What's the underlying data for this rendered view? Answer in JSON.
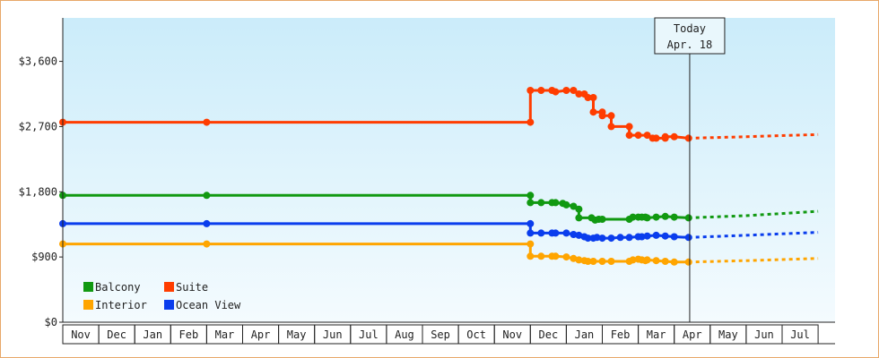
{
  "chart_data": {
    "type": "line",
    "y_ticks": [
      {
        "value": 0,
        "label": "$0"
      },
      {
        "value": 900,
        "label": "$900"
      },
      {
        "value": 1800,
        "label": "$1,800"
      },
      {
        "value": 2700,
        "label": "$2,700"
      },
      {
        "value": 3600,
        "label": "$3,600"
      }
    ],
    "ylim": [
      0,
      3600
    ],
    "y_axis_top": 4200,
    "x_months": [
      "Nov",
      "Dec",
      "Jan",
      "Feb",
      "Mar",
      "Apr",
      "May",
      "Jun",
      "Jul",
      "Aug",
      "Sep",
      "Oct",
      "Nov",
      "Dec",
      "Jan",
      "Feb",
      "Mar",
      "Apr",
      "May",
      "Jun",
      "Jul"
    ],
    "today": {
      "line1": "Today",
      "line2": "Apr. 18",
      "x": 17.43
    },
    "legend": [
      {
        "name": "Balcony",
        "color": "#119911"
      },
      {
        "name": "Suite",
        "color": "#ff3d00"
      },
      {
        "name": "Interior",
        "color": "#ffa500"
      },
      {
        "name": "Ocean View",
        "color": "#0a3ded"
      }
    ],
    "series": [
      {
        "name": "Suite",
        "color": "#ff3d00",
        "points": [
          [
            0,
            2760
          ],
          [
            4,
            2760
          ],
          [
            13,
            2760
          ],
          [
            13,
            3200
          ],
          [
            13.3,
            3200
          ],
          [
            13.6,
            3200
          ],
          [
            13.7,
            3180
          ],
          [
            14.0,
            3200
          ],
          [
            14.2,
            3200
          ],
          [
            14.35,
            3150
          ],
          [
            14.5,
            3150
          ],
          [
            14.6,
            3100
          ],
          [
            14.75,
            3100
          ],
          [
            14.75,
            2900
          ],
          [
            15.0,
            2900
          ],
          [
            15.0,
            2850
          ],
          [
            15.25,
            2850
          ],
          [
            15.25,
            2700
          ],
          [
            15.75,
            2700
          ],
          [
            15.75,
            2580
          ],
          [
            16.0,
            2580
          ],
          [
            16.25,
            2580
          ],
          [
            16.4,
            2540
          ],
          [
            16.5,
            2540
          ],
          [
            16.75,
            2540
          ],
          [
            16.75,
            2560
          ],
          [
            17.0,
            2560
          ],
          [
            17.4,
            2540
          ]
        ],
        "forecast": [
          [
            17.4,
            2540
          ],
          [
            19,
            2560
          ],
          [
            21,
            2590
          ]
        ]
      },
      {
        "name": "Balcony",
        "color": "#119911",
        "points": [
          [
            0,
            1750
          ],
          [
            4,
            1750
          ],
          [
            13,
            1750
          ],
          [
            13,
            1650
          ],
          [
            13.3,
            1650
          ],
          [
            13.6,
            1650
          ],
          [
            13.7,
            1650
          ],
          [
            13.9,
            1640
          ],
          [
            14.0,
            1620
          ],
          [
            14.2,
            1600
          ],
          [
            14.35,
            1560
          ],
          [
            14.35,
            1440
          ],
          [
            14.7,
            1440
          ],
          [
            14.8,
            1410
          ],
          [
            14.9,
            1420
          ],
          [
            15.0,
            1420
          ],
          [
            15.75,
            1420
          ],
          [
            15.85,
            1450
          ],
          [
            16.0,
            1450
          ],
          [
            16.1,
            1450
          ],
          [
            16.2,
            1450
          ],
          [
            16.25,
            1440
          ],
          [
            16.5,
            1450
          ],
          [
            16.75,
            1460
          ],
          [
            17.0,
            1450
          ],
          [
            17.4,
            1440
          ]
        ],
        "forecast": [
          [
            17.4,
            1440
          ],
          [
            19,
            1470
          ],
          [
            21,
            1530
          ]
        ]
      },
      {
        "name": "Ocean View",
        "color": "#0a3ded",
        "points": [
          [
            0,
            1360
          ],
          [
            4,
            1360
          ],
          [
            13,
            1360
          ],
          [
            13,
            1230
          ],
          [
            13.3,
            1230
          ],
          [
            13.6,
            1230
          ],
          [
            13.7,
            1230
          ],
          [
            14.0,
            1230
          ],
          [
            14.2,
            1210
          ],
          [
            14.35,
            1200
          ],
          [
            14.5,
            1180
          ],
          [
            14.6,
            1160
          ],
          [
            14.75,
            1160
          ],
          [
            14.85,
            1170
          ],
          [
            15.0,
            1160
          ],
          [
            15.25,
            1160
          ],
          [
            15.5,
            1170
          ],
          [
            15.75,
            1170
          ],
          [
            16.0,
            1180
          ],
          [
            16.1,
            1180
          ],
          [
            16.25,
            1190
          ],
          [
            16.5,
            1200
          ],
          [
            16.75,
            1190
          ],
          [
            17.0,
            1180
          ],
          [
            17.4,
            1170
          ]
        ],
        "forecast": [
          [
            17.4,
            1170
          ],
          [
            19,
            1200
          ],
          [
            21,
            1240
          ]
        ]
      },
      {
        "name": "Interior",
        "color": "#ffa500",
        "points": [
          [
            0,
            1080
          ],
          [
            4,
            1080
          ],
          [
            13,
            1080
          ],
          [
            13,
            910
          ],
          [
            13.3,
            910
          ],
          [
            13.6,
            910
          ],
          [
            13.7,
            910
          ],
          [
            14.0,
            900
          ],
          [
            14.2,
            880
          ],
          [
            14.35,
            860
          ],
          [
            14.5,
            850
          ],
          [
            14.6,
            840
          ],
          [
            14.75,
            840
          ],
          [
            15.0,
            840
          ],
          [
            15.25,
            840
          ],
          [
            15.75,
            840
          ],
          [
            15.85,
            860
          ],
          [
            16.0,
            870
          ],
          [
            16.1,
            860
          ],
          [
            16.2,
            850
          ],
          [
            16.25,
            860
          ],
          [
            16.5,
            850
          ],
          [
            16.75,
            840
          ],
          [
            17.0,
            830
          ],
          [
            17.4,
            830
          ]
        ],
        "forecast": [
          [
            17.4,
            830
          ],
          [
            19,
            850
          ],
          [
            21,
            880
          ]
        ]
      }
    ]
  }
}
